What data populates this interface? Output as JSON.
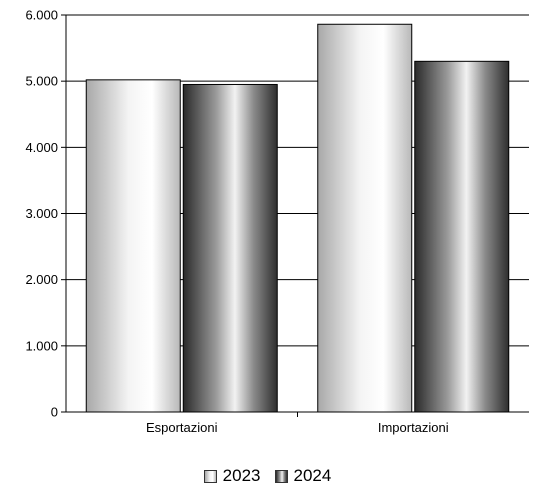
{
  "chart_data": {
    "type": "bar",
    "categories": [
      "Esportazioni",
      "Importazioni"
    ],
    "series": [
      {
        "name": "2023",
        "values": [
          5020,
          5860
        ],
        "color": "#c8c8c8",
        "style": "light-gradient"
      },
      {
        "name": "2024",
        "values": [
          4950,
          5300
        ],
        "color": "#3c3c3c",
        "style": "dark-gradient"
      }
    ],
    "title": "",
    "xlabel": "",
    "ylabel": "",
    "ylim": [
      0,
      6000
    ],
    "yticks": [
      0,
      1000,
      2000,
      3000,
      4000,
      5000,
      6000
    ],
    "ytick_labels": [
      "0",
      "1.000",
      "2.000",
      "3.000",
      "4.000",
      "5.000",
      "6.000"
    ],
    "grid": true,
    "legend_position": "bottom"
  }
}
